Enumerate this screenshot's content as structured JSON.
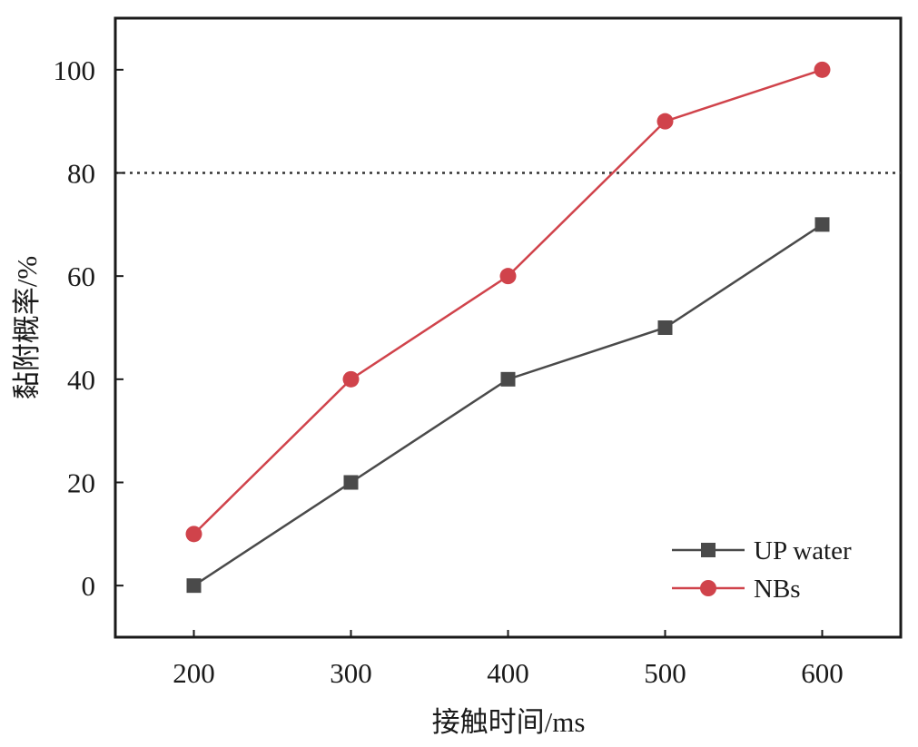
{
  "chart_data": {
    "type": "line",
    "title": "",
    "xlabel": "接触时间/ms",
    "ylabel": "黏附概率/%",
    "categories": [
      200,
      300,
      400,
      500,
      600
    ],
    "x_ticks": [
      "200",
      "300",
      "400",
      "500",
      "600"
    ],
    "y_ticks": [
      "0",
      "20",
      "40",
      "60",
      "80",
      "100"
    ],
    "xlim": [
      150,
      650
    ],
    "ylim": [
      -10,
      110
    ],
    "reference_line": {
      "y": 80,
      "style": "dotted"
    },
    "grid": false,
    "legend_position": "bottom-right",
    "series": [
      {
        "name": "UP water",
        "marker": "square",
        "color": "#4a4a4a",
        "x": [
          200,
          300,
          400,
          500,
          600
        ],
        "values": [
          0,
          20,
          40,
          50,
          70
        ]
      },
      {
        "name": "NBs",
        "marker": "circle",
        "color": "#d0434b",
        "x": [
          200,
          300,
          400,
          500,
          600
        ],
        "values": [
          10,
          40,
          60,
          90,
          100
        ]
      }
    ]
  }
}
